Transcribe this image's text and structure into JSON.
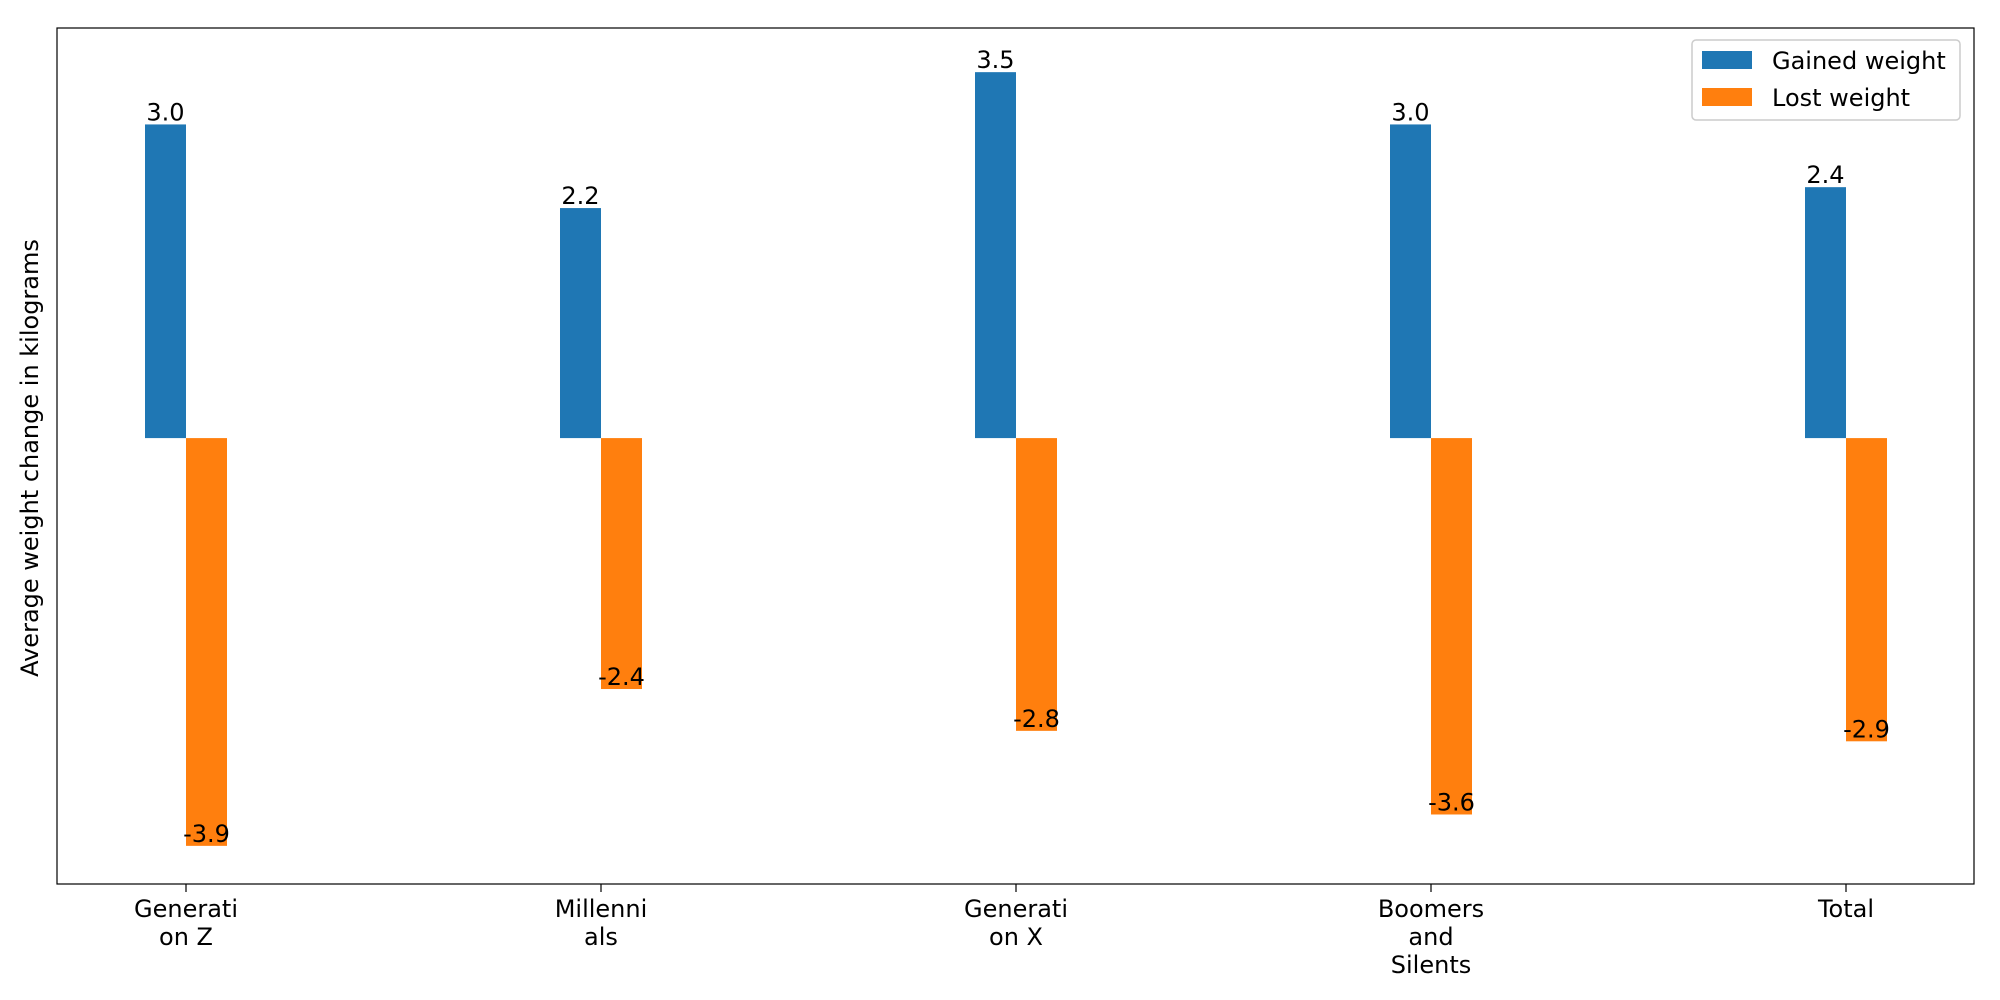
{
  "chart_data": {
    "type": "bar",
    "title": "",
    "xlabel": "",
    "ylabel": "Average weight change in kilograms",
    "categories": [
      [
        "Generati",
        "on Z"
      ],
      [
        "Millenni",
        "als"
      ],
      [
        "Generati",
        "on X"
      ],
      [
        "Boomers",
        "and",
        "Silents"
      ],
      [
        "Total"
      ]
    ],
    "series": [
      {
        "name": "Gained weight",
        "color": "#1f77b4",
        "values": [
          3.0,
          2.2,
          3.5,
          3.0,
          2.4
        ],
        "labels": [
          "3.0",
          "2.2",
          "3.5",
          "3.0",
          "2.4"
        ]
      },
      {
        "name": "Lost weight",
        "color": "#ff7f0e",
        "values": [
          -3.9,
          -2.4,
          -2.8,
          -3.6,
          -2.9
        ],
        "labels": [
          "-3.9",
          "-2.4",
          "-2.8",
          "-3.6",
          "-2.9"
        ]
      }
    ],
    "ylim": [
      -4.2648,
      3.9223
    ],
    "grid": false,
    "legend_position": "top-right",
    "y_ticks_visible": false
  }
}
